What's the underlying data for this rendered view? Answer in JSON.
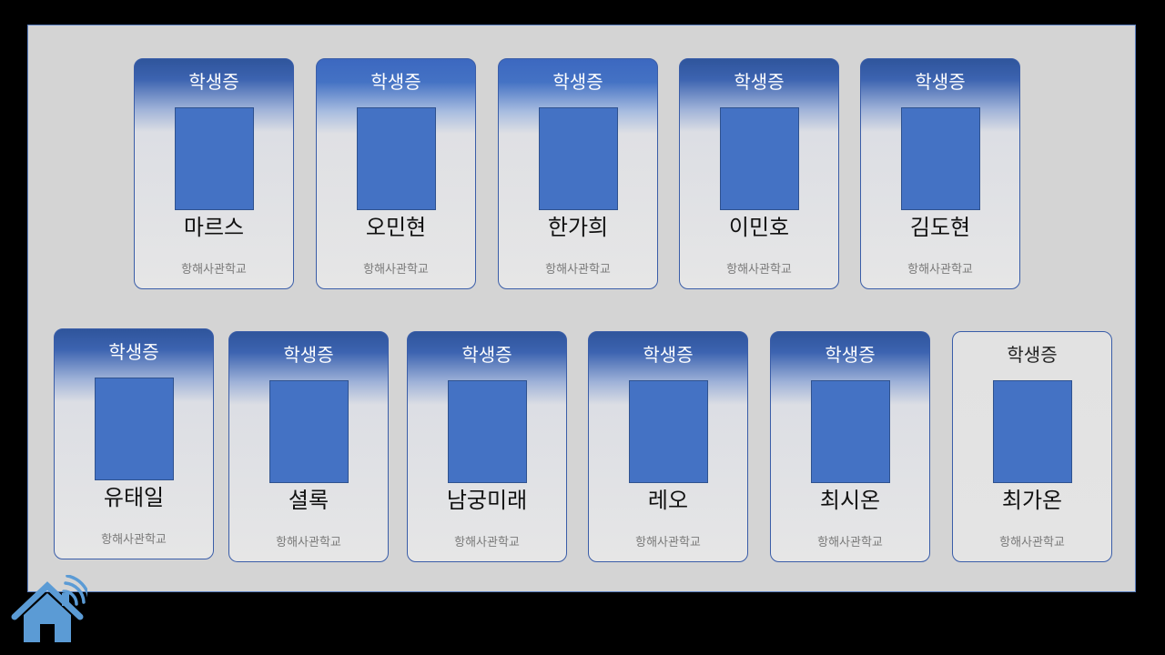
{
  "cards": [
    {
      "title": "학생증",
      "name": "마르스",
      "school": "항해사관학교"
    },
    {
      "title": "학생증",
      "name": "오민현",
      "school": "항해사관학교"
    },
    {
      "title": "학생증",
      "name": "한가희",
      "school": "항해사관학교"
    },
    {
      "title": "학생증",
      "name": "이민호",
      "school": "항해사관학교"
    },
    {
      "title": "학생증",
      "name": "김도현",
      "school": "항해사관학교"
    },
    {
      "title": "학생증",
      "name": "유태일",
      "school": "항해사관학교"
    },
    {
      "title": "학생증",
      "name": "셜록",
      "school": "항해사관학교"
    },
    {
      "title": "학생증",
      "name": "남궁미래",
      "school": "항해사관학교"
    },
    {
      "title": "학생증",
      "name": "레오",
      "school": "항해사관학교"
    },
    {
      "title": "학생증",
      "name": "최시온",
      "school": "항해사관학교"
    },
    {
      "title": "학생증",
      "name": "최가온",
      "school": "항해사관학교"
    }
  ],
  "home_button": {
    "icon": "home-wifi-icon"
  },
  "colors": {
    "card_header": "#2f559c",
    "photo": "#4472c4",
    "panel": "#d4d4d4",
    "background": "#000000"
  }
}
